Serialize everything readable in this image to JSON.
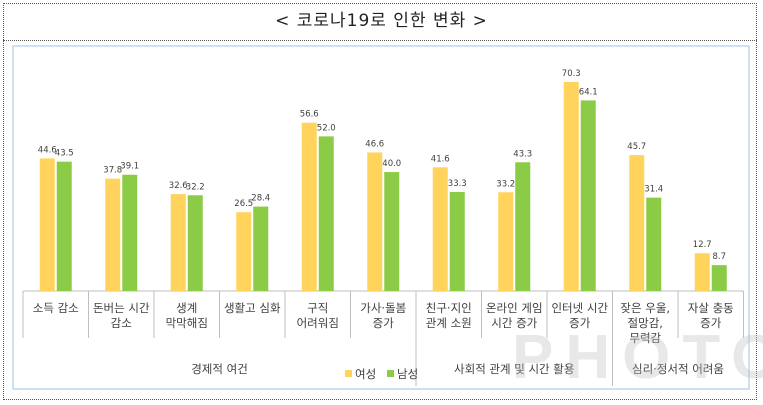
{
  "title": "< 코로나19로 인한 변화 >",
  "watermark": "PHOTO",
  "colors": {
    "female": "#FFD35C",
    "male": "#8CCB45",
    "frame": "#9DC3E6",
    "axis": "#BFBFBF",
    "text": "#404040"
  },
  "chart_data": {
    "type": "bar",
    "categories": [
      [
        "소득 감소"
      ],
      [
        "돈버는 시간",
        "감소"
      ],
      [
        "생계",
        "막막해짐"
      ],
      [
        "생활고 심화"
      ],
      [
        "구직",
        "어려워짐"
      ],
      [
        "가사·돌봄",
        "증가"
      ],
      [
        "친구·지인",
        "관계 소원"
      ],
      [
        "온라인 게임",
        "시간 증가"
      ],
      [
        "인터넷 시간",
        "증가"
      ],
      [
        "잦은 우울,",
        "절망감,",
        "무력감"
      ],
      [
        "자살 충동",
        "증가"
      ]
    ],
    "series": [
      {
        "name": "여성",
        "color": "#FFD35C",
        "values": [
          44.6,
          37.8,
          32.6,
          26.5,
          56.6,
          46.6,
          41.6,
          33.2,
          70.3,
          45.7,
          12.7
        ]
      },
      {
        "name": "남성",
        "color": "#8CCB45",
        "values": [
          43.5,
          39.1,
          32.2,
          28.4,
          52.0,
          40.0,
          33.3,
          43.3,
          64.1,
          31.4,
          8.7
        ]
      }
    ],
    "groups": [
      {
        "label": "경제적 여건",
        "start": 0,
        "end": 5
      },
      {
        "label": "사회적 관계 및 시간 활용",
        "start": 6,
        "end": 8
      },
      {
        "label": "심리·정서적 어려움",
        "start": 9,
        "end": 10
      }
    ],
    "ylim": [
      0,
      75
    ],
    "legend_position": "bottom-center",
    "grid": false
  }
}
